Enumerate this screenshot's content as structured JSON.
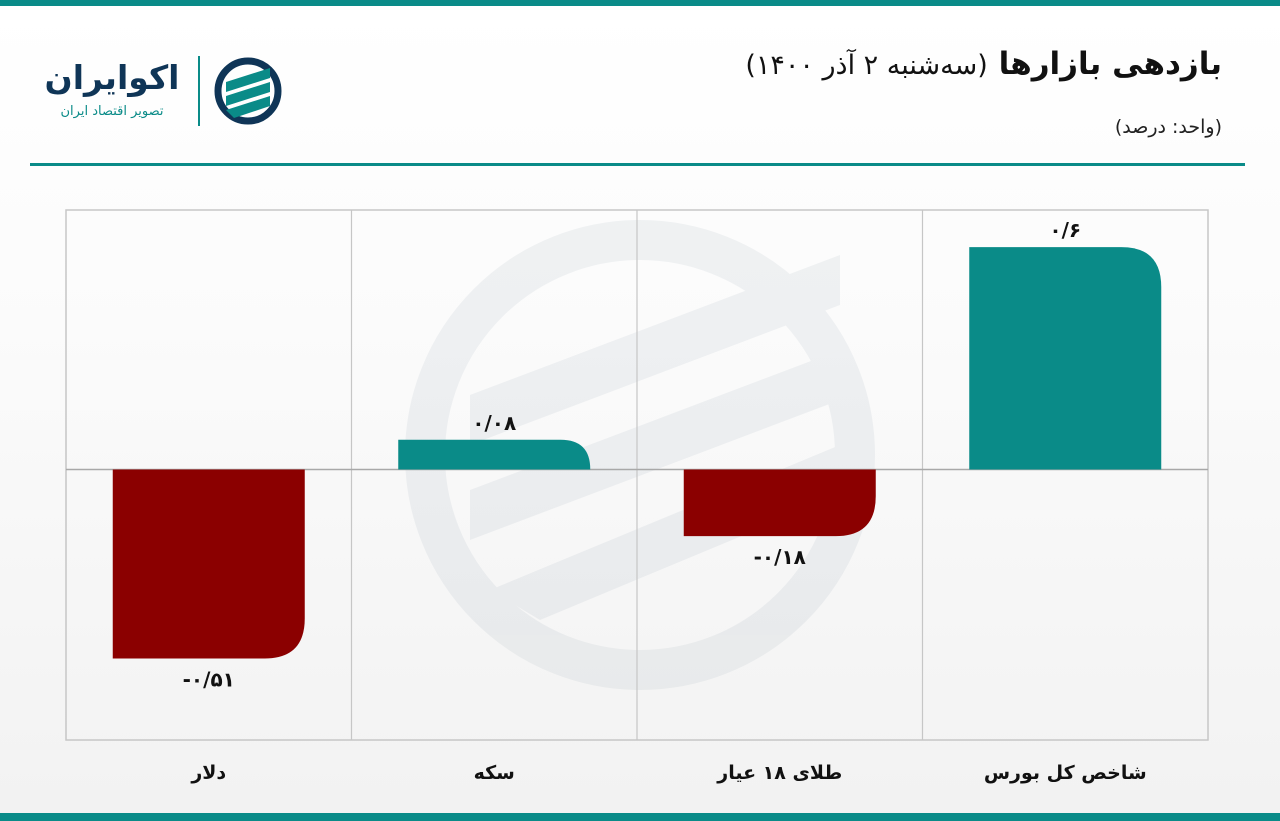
{
  "header": {
    "title_main": "بازدهی بازارها",
    "title_sub": "(سه‌شنبه ۲ آذر ۱۴۰۰)",
    "unit": "(واحد: درصد)"
  },
  "brand": {
    "name": "اکوایران",
    "tagline": "تصویر اقتصاد ایران",
    "accent_color": "#0a8b88",
    "dark_color": "#0f3557"
  },
  "chart_data": {
    "type": "bar",
    "categories": [
      "شاخص کل بورس",
      "طلای ۱۸ عیار",
      "سکه",
      "دلار"
    ],
    "values": [
      0.6,
      -0.18,
      0.08,
      -0.51
    ],
    "value_labels": [
      "۰/۶",
      "-۰/۱۸",
      "۰/۰۸",
      "-۰/۵۱"
    ],
    "ylim": [
      -0.73,
      0.7
    ],
    "grid": true,
    "positive_color": "#0a8b88",
    "negative_color": "#8b0000"
  }
}
